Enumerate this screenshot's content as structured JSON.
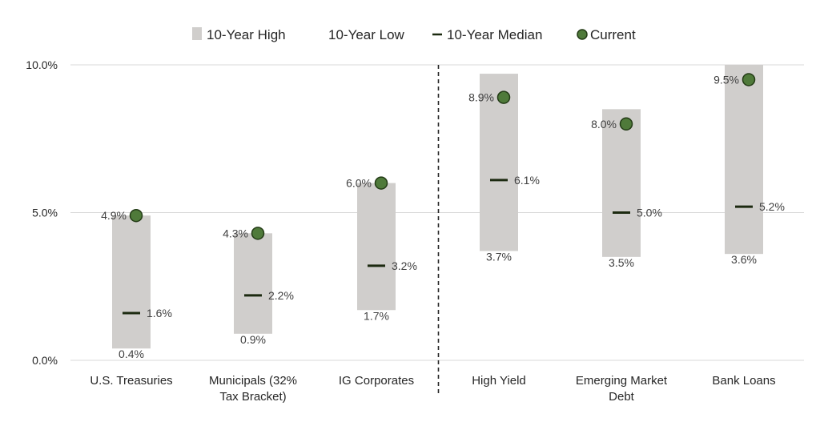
{
  "chart_data": {
    "type": "range-bar",
    "legend": {
      "high": "10-Year High",
      "low": "10-Year Low",
      "median": "10-Year Median",
      "current": "Current"
    },
    "yticks": [
      "10.0%",
      "5.0%",
      "0.0%"
    ],
    "ylim": [
      0,
      10
    ],
    "categories": [
      [
        "U.S. Treasuries"
      ],
      [
        "Municipals (32%",
        "Tax Bracket)"
      ],
      [
        "IG Corporates"
      ],
      [
        "High Yield"
      ],
      [
        "Emerging Market",
        "Debt"
      ],
      [
        "Bank Loans"
      ]
    ],
    "high": [
      4.9,
      4.3,
      6.0,
      9.7,
      8.5,
      10.0
    ],
    "low": [
      0.4,
      0.9,
      1.7,
      3.7,
      3.5,
      3.6
    ],
    "median": [
      1.6,
      2.2,
      3.2,
      6.1,
      5.0,
      5.2
    ],
    "current": [
      4.9,
      4.3,
      6.0,
      8.9,
      8.0,
      9.5
    ],
    "labels": {
      "low": [
        "0.4%",
        "0.9%",
        "1.7%",
        "3.7%",
        "3.5%",
        "3.6%"
      ],
      "median": [
        "1.6%",
        "2.2%",
        "3.2%",
        "6.1%",
        "5.0%",
        "5.2%"
      ],
      "current": [
        "4.9%",
        "4.3%",
        "6.0%",
        "8.9%",
        "8.0%",
        "9.5%"
      ]
    },
    "divider_after_category": 3,
    "grid": true,
    "legend_position": "top-center",
    "colors": {
      "range": "#d0cecc",
      "median": "#1c2a10",
      "current_fill": "#4f7a3a",
      "current_stroke": "#233b16",
      "grid": "#d9d9d9",
      "divider": "#262626"
    }
  }
}
